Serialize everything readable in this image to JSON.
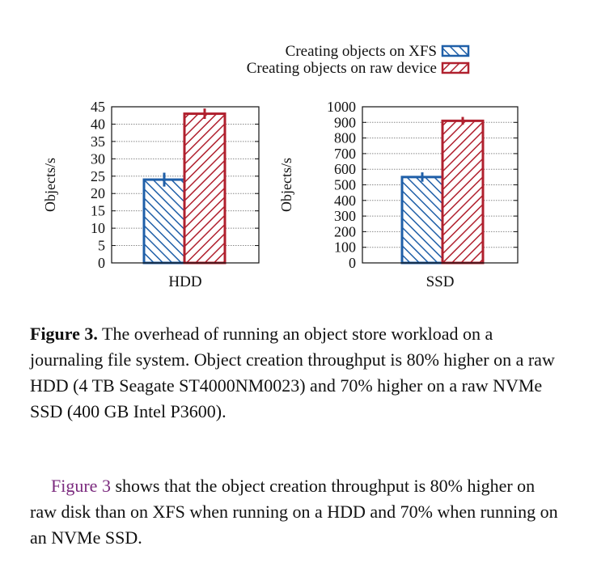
{
  "chart_data": [
    {
      "type": "bar",
      "xlabel": "HDD",
      "ylabel": "Objects/s",
      "ylim": [
        0,
        45
      ],
      "yticks": [
        0,
        5,
        10,
        15,
        20,
        25,
        30,
        35,
        40,
        45
      ],
      "grid": true,
      "series": [
        {
          "name": "Creating objects on XFS",
          "values": [
            24
          ],
          "error": [
            2
          ],
          "color": "#1f5fa8",
          "hatch": "backslash"
        },
        {
          "name": "Creating objects on raw device",
          "values": [
            43
          ],
          "error": [
            1.5
          ],
          "color": "#b0202e",
          "hatch": "slash"
        }
      ]
    },
    {
      "type": "bar",
      "xlabel": "SSD",
      "ylabel": "Objects/s",
      "ylim": [
        0,
        1000
      ],
      "yticks": [
        0,
        100,
        200,
        300,
        400,
        500,
        600,
        700,
        800,
        900,
        1000
      ],
      "grid": true,
      "series": [
        {
          "name": "Creating objects on XFS",
          "values": [
            550
          ],
          "error": [
            30
          ],
          "color": "#1f5fa8",
          "hatch": "backslash"
        },
        {
          "name": "Creating objects on raw device",
          "values": [
            910
          ],
          "error": [
            25
          ],
          "color": "#b0202e",
          "hatch": "slash"
        }
      ]
    }
  ],
  "legend": {
    "placement": "top-right",
    "items": [
      {
        "label": "Creating objects on XFS",
        "color": "#1f5fa8",
        "hatch": "backslash"
      },
      {
        "label": "Creating objects on raw device",
        "color": "#b0202e",
        "hatch": "slash"
      }
    ]
  },
  "caption": {
    "label": "Figure 3.",
    "text": "The overhead of running an object store workload on a journaling file system. Object creation throughput is 80% higher on a raw HDD (4 TB Seagate ST4000NM0023) and 70% higher on a raw NVMe SSD (400 GB Intel P3600)."
  },
  "body": {
    "link_text": "Figure 3",
    "text": "shows that the object creation throughput is 80% higher on raw disk than on XFS when running on a HDD and 70% when running on an NVMe SSD."
  }
}
